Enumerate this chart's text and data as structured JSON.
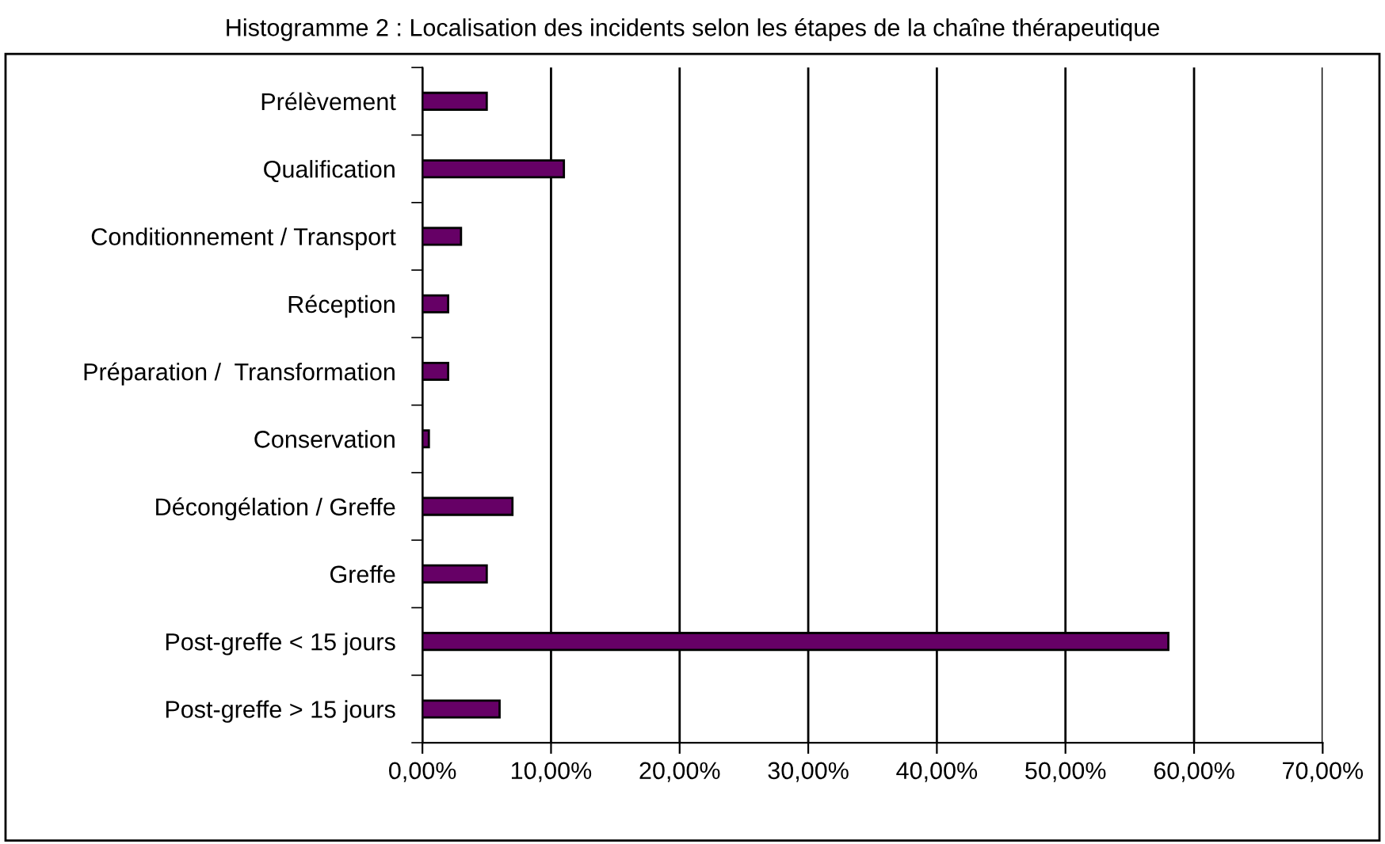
{
  "chart_data": {
    "type": "bar",
    "orientation": "horizontal",
    "title": "Histogramme 2 : Localisation des incidents selon les étapes de la chaîne thérapeutique",
    "categories": [
      "Prélèvement",
      "Qualification",
      "Conditionnement / Transport",
      "Réception",
      "Préparation /  Transformation",
      "Conservation",
      "Décongélation / Greffe",
      "Greffe",
      "Post-greffe < 15 jours",
      "Post-greffe > 15 jours"
    ],
    "values": [
      5,
      11,
      3,
      2,
      2,
      0.5,
      7,
      5,
      58,
      6
    ],
    "color": "#660066",
    "xlim": [
      0,
      70
    ],
    "xticks": [
      {
        "value": 0,
        "label": "0,00%"
      },
      {
        "value": 10,
        "label": "10,00%"
      },
      {
        "value": 20,
        "label": "20,00%"
      },
      {
        "value": 30,
        "label": "30,00%"
      },
      {
        "value": 40,
        "label": "40,00%"
      },
      {
        "value": 50,
        "label": "50,00%"
      },
      {
        "value": 60,
        "label": "60,00%"
      },
      {
        "value": 70,
        "label": "70,00%"
      }
    ],
    "grid": "x"
  }
}
